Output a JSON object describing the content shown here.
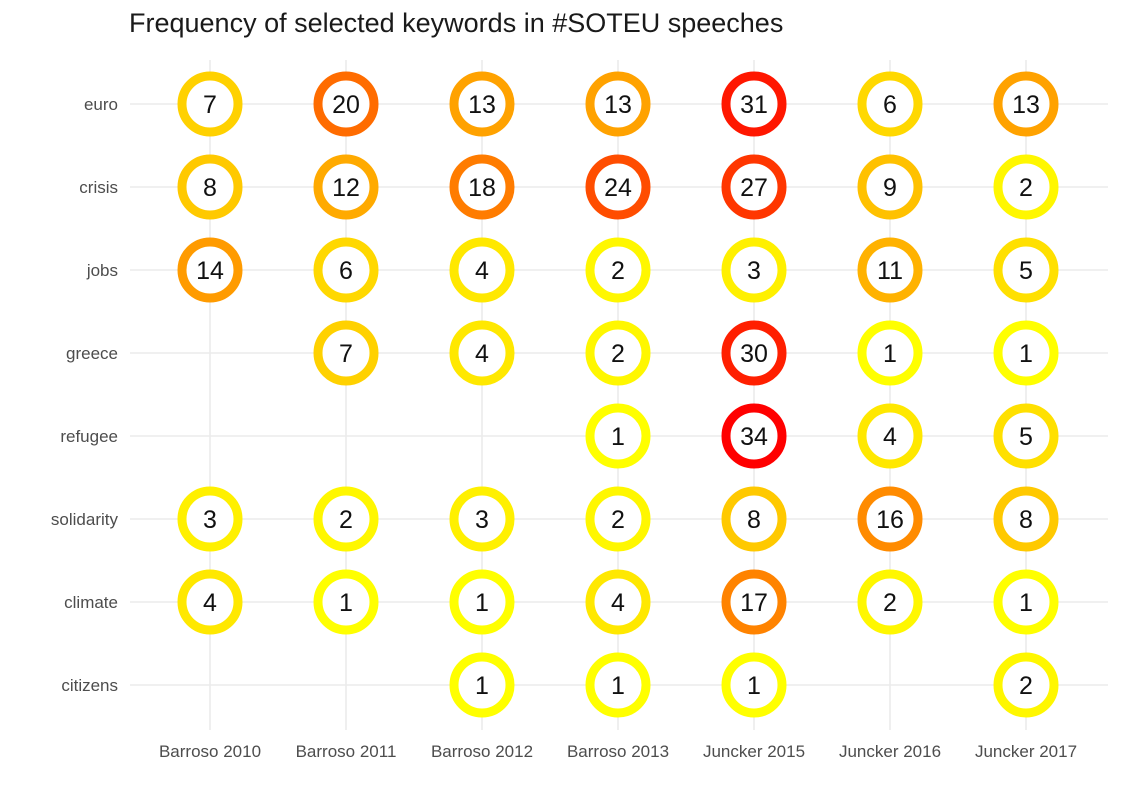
{
  "chart_data": {
    "type": "heatmap",
    "title": "Frequency of selected keywords in #SOTEU speeches",
    "xlabel": "",
    "ylabel": "",
    "grid": true,
    "legend": "none",
    "categories": [
      "Barroso 2010",
      "Barroso 2011",
      "Barroso 2012",
      "Barroso 2013",
      "Juncker 2015",
      "Juncker 2016",
      "Juncker 2017"
    ],
    "keywords": [
      "euro",
      "crisis",
      "jobs",
      "greece",
      "refugee",
      "solidarity",
      "climate",
      "citizens"
    ],
    "values": [
      [
        7,
        20,
        13,
        13,
        31,
        6,
        13
      ],
      [
        8,
        12,
        18,
        24,
        27,
        9,
        2
      ],
      [
        14,
        6,
        4,
        2,
        3,
        11,
        5
      ],
      [
        null,
        7,
        4,
        2,
        30,
        1,
        1
      ],
      [
        null,
        null,
        null,
        1,
        34,
        4,
        5
      ],
      [
        3,
        2,
        3,
        2,
        8,
        16,
        8
      ],
      [
        4,
        1,
        1,
        4,
        17,
        2,
        1
      ],
      [
        null,
        null,
        1,
        1,
        1,
        null,
        2
      ]
    ],
    "color_scale": {
      "low": "#ffff00",
      "high": "#ff0000",
      "min": 1,
      "max": 34
    },
    "grid_color": "#ebebeb"
  }
}
